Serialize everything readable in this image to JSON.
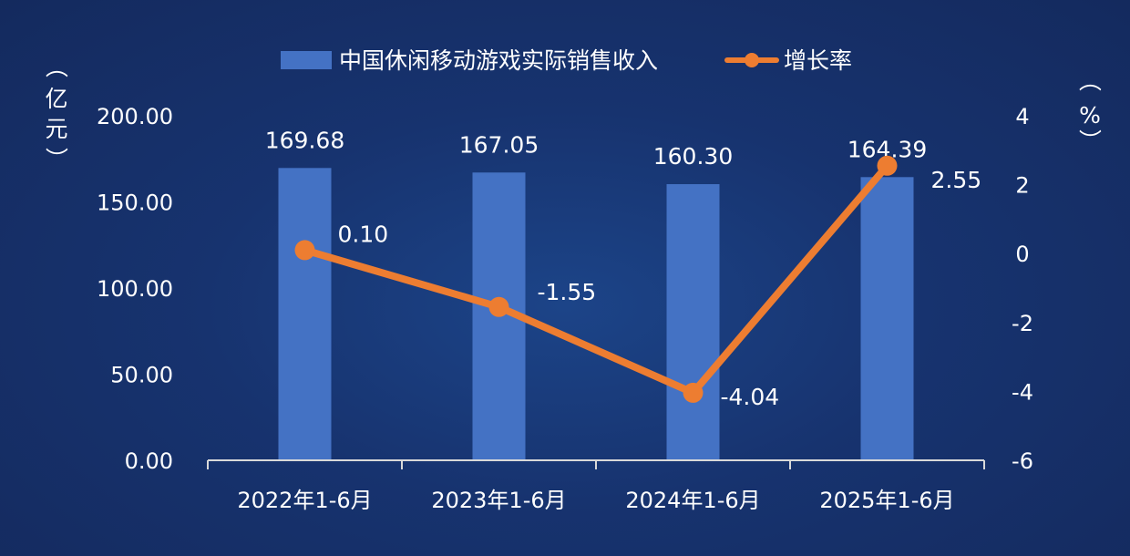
{
  "colors": {
    "bar": "#4472c4",
    "line": "#ed7d31",
    "axis": "#d9d9d9",
    "text": "#ffffff"
  },
  "chart_data": {
    "type": "bar",
    "categories": [
      "2022年1-6月",
      "2023年1-6月",
      "2024年1-6月",
      "2025年1-6月"
    ],
    "series": [
      {
        "name": "中国休闲移动游戏实际销售收入",
        "type": "bar",
        "axis": "left",
        "values": [
          169.68,
          167.05,
          160.3,
          164.39
        ],
        "labels": [
          "169.68",
          "167.05",
          "160.30",
          "164.39"
        ]
      },
      {
        "name": "增长率",
        "type": "line",
        "axis": "right",
        "values": [
          0.1,
          -1.55,
          -4.04,
          2.55
        ],
        "labels": [
          "0.10",
          "-1.55",
          "-4.04",
          "2.55"
        ]
      }
    ],
    "y_left": {
      "label_chars": [
        "（",
        "亿",
        "元",
        "）"
      ],
      "ylim": [
        0,
        200
      ],
      "ticks": [
        0,
        50,
        100,
        150,
        200
      ],
      "tick_labels": [
        "0.00",
        "50.00",
        "100.00",
        "150.00",
        "200.00"
      ]
    },
    "y_right": {
      "label_chars": [
        "（",
        "%",
        "）"
      ],
      "ylim": [
        -6,
        4
      ],
      "ticks": [
        -6,
        -4,
        -2,
        0,
        2,
        4
      ],
      "tick_labels": [
        "-6",
        "-4",
        "-2",
        "0",
        "2",
        "4"
      ]
    },
    "legend_position": "top-center",
    "grid": false
  }
}
